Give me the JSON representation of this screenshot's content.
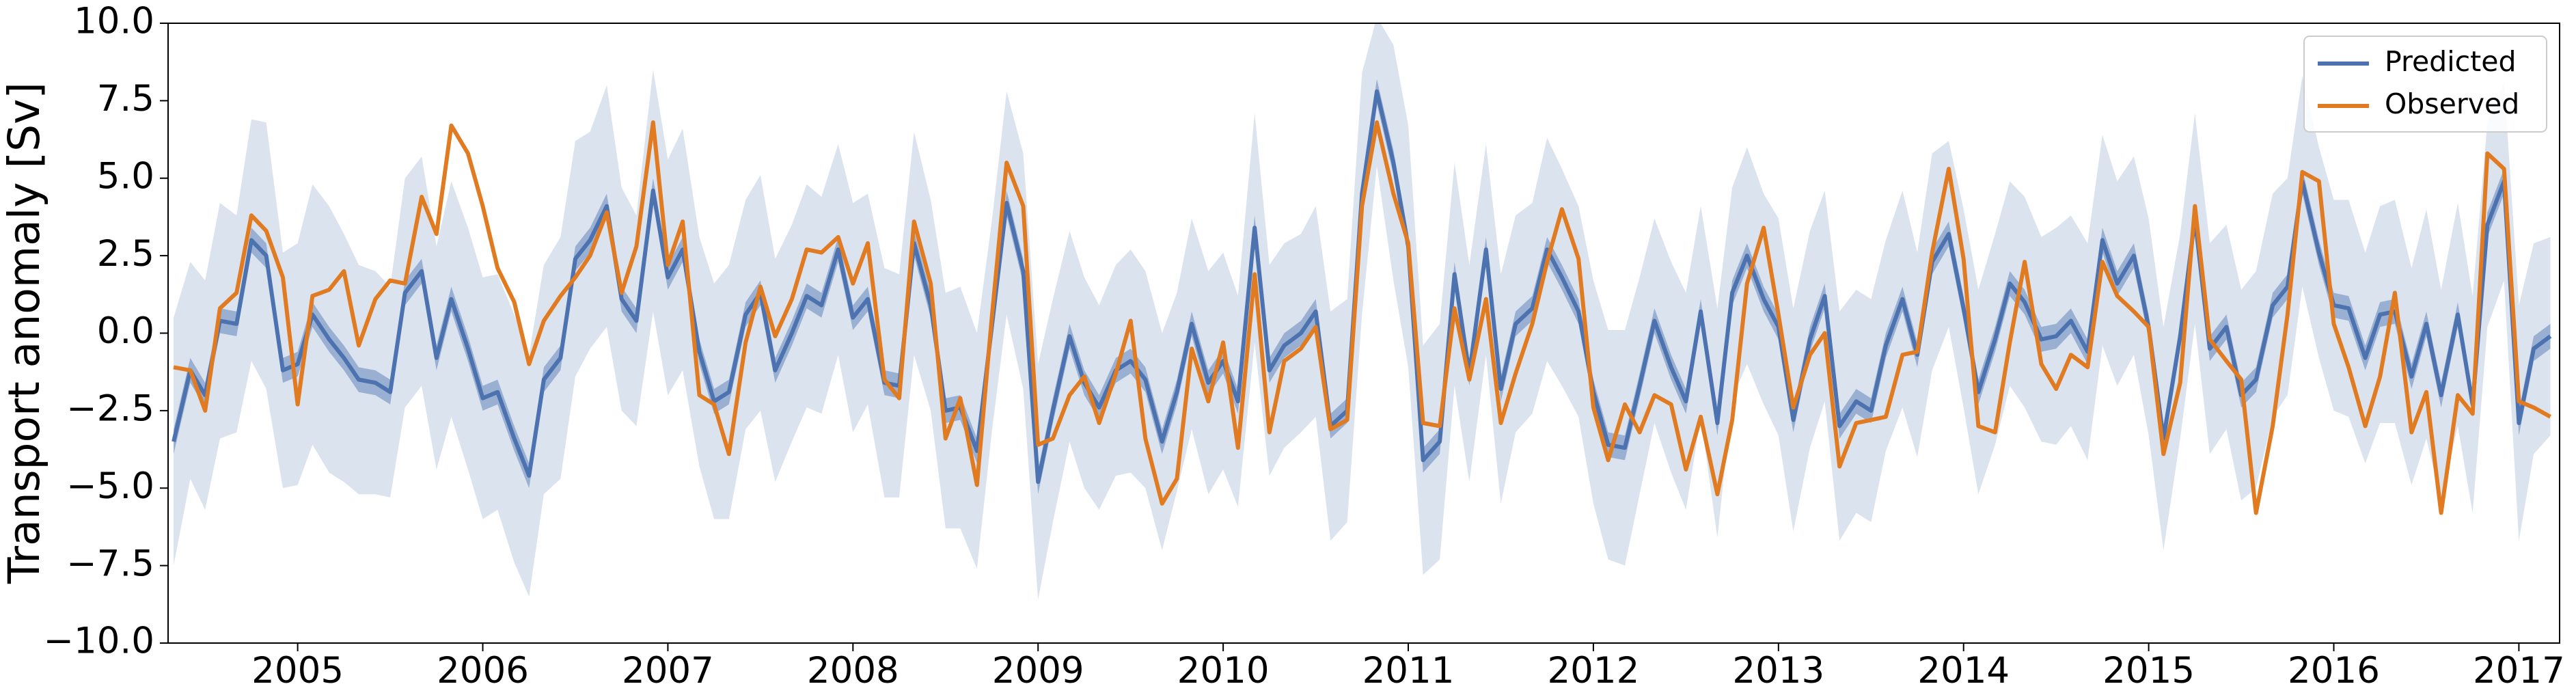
{
  "chart_data": {
    "type": "line",
    "ylabel": "Transport anomaly [Sv]",
    "xlim": [
      2004.3,
      2017.22
    ],
    "ylim": [
      -10,
      10
    ],
    "xticks": [
      2005,
      2006,
      2007,
      2008,
      2009,
      2010,
      2011,
      2012,
      2013,
      2014,
      2015,
      2016,
      2017
    ],
    "yticks": [
      {
        "value": -10,
        "label": "−10.0"
      },
      {
        "value": -7.5,
        "label": "−7.5"
      },
      {
        "value": -5,
        "label": "−5.0"
      },
      {
        "value": -2.5,
        "label": "−2.5"
      },
      {
        "value": 0,
        "label": "0.0"
      },
      {
        "value": 2.5,
        "label": "2.5"
      },
      {
        "value": 5,
        "label": "5.0"
      },
      {
        "value": 7.5,
        "label": "7.5"
      },
      {
        "value": 10,
        "label": "10.0"
      }
    ],
    "legend": "upper right",
    "x": [
      2004.33,
      2004.42,
      2004.5,
      2004.58,
      2004.67,
      2004.75,
      2004.83,
      2004.92,
      2005,
      2005.08,
      2005.17,
      2005.25,
      2005.33,
      2005.42,
      2005.5,
      2005.58,
      2005.67,
      2005.75,
      2005.83,
      2005.92,
      2006,
      2006.08,
      2006.17,
      2006.25,
      2006.33,
      2006.42,
      2006.5,
      2006.58,
      2006.67,
      2006.75,
      2006.83,
      2006.92,
      2007,
      2007.08,
      2007.17,
      2007.25,
      2007.33,
      2007.42,
      2007.5,
      2007.58,
      2007.67,
      2007.75,
      2007.83,
      2007.92,
      2008,
      2008.08,
      2008.17,
      2008.25,
      2008.33,
      2008.42,
      2008.5,
      2008.58,
      2008.67,
      2008.75,
      2008.83,
      2008.92,
      2009,
      2009.08,
      2009.17,
      2009.25,
      2009.33,
      2009.42,
      2009.5,
      2009.58,
      2009.67,
      2009.75,
      2009.83,
      2009.92,
      2010,
      2010.08,
      2010.17,
      2010.25,
      2010.33,
      2010.42,
      2010.5,
      2010.58,
      2010.67,
      2010.75,
      2010.83,
      2010.92,
      2011,
      2011.08,
      2011.17,
      2011.25,
      2011.33,
      2011.42,
      2011.5,
      2011.58,
      2011.67,
      2011.75,
      2011.83,
      2011.92,
      2012,
      2012.08,
      2012.17,
      2012.25,
      2012.33,
      2012.42,
      2012.5,
      2012.58,
      2012.67,
      2012.75,
      2012.83,
      2012.92,
      2013,
      2013.08,
      2013.17,
      2013.25,
      2013.33,
      2013.42,
      2013.5,
      2013.58,
      2013.67,
      2013.75,
      2013.83,
      2013.92,
      2014,
      2014.08,
      2014.17,
      2014.25,
      2014.33,
      2014.42,
      2014.5,
      2014.58,
      2014.67,
      2014.75,
      2014.83,
      2014.92,
      2015,
      2015.08,
      2015.17,
      2015.25,
      2015.33,
      2015.42,
      2015.5,
      2015.58,
      2015.67,
      2015.75,
      2015.83,
      2015.92,
      2016,
      2016.08,
      2016.17,
      2016.25,
      2016.33,
      2016.42,
      2016.5,
      2016.58,
      2016.67,
      2016.75,
      2016.83,
      2016.92,
      2017,
      2017.08,
      2017.17
    ],
    "series": [
      {
        "name": "Predicted",
        "color": "#4c72b0",
        "values": [
          -3.5,
          -1.2,
          -2.0,
          0.4,
          0.3,
          3.0,
          2.5,
          -1.2,
          -1.0,
          0.6,
          -0.2,
          -0.8,
          -1.5,
          -1.6,
          -1.9,
          1.3,
          2.0,
          -0.8,
          1.1,
          -0.5,
          -2.1,
          -1.9,
          -3.4,
          -4.6,
          -1.5,
          -0.8,
          2.4,
          3.0,
          4.1,
          1.1,
          0.4,
          4.6,
          1.8,
          2.7,
          -0.6,
          -2.2,
          -1.9,
          0.6,
          1.3,
          -1.2,
          0.0,
          1.2,
          0.9,
          2.7,
          0.5,
          1.1,
          -1.6,
          -1.7,
          2.9,
          0.9,
          -2.5,
          -2.4,
          -3.8,
          0.2,
          4.2,
          2.0,
          -4.8,
          -2.5,
          -0.1,
          -1.6,
          -2.4,
          -1.2,
          -0.9,
          -1.5,
          -3.5,
          -1.9,
          0.3,
          -1.6,
          -0.9,
          -2.2,
          3.4,
          -1.2,
          -0.4,
          0.0,
          0.7,
          -3.0,
          -2.5,
          4.5,
          7.8,
          5.5,
          2.8,
          -4.1,
          -3.5,
          1.9,
          -1.3,
          2.7,
          -1.8,
          0.3,
          0.8,
          2.7,
          1.8,
          0.7,
          -1.9,
          -3.6,
          -3.7,
          -1.7,
          0.4,
          -1.1,
          -2.2,
          0.7,
          -2.9,
          1.3,
          2.5,
          1.1,
          0.2,
          -2.8,
          -0.2,
          1.2,
          -3.0,
          -2.2,
          -2.5,
          -0.4,
          1.1,
          -0.7,
          2.3,
          3.2,
          0.8,
          -1.9,
          -0.2,
          1.6,
          1.0,
          -0.2,
          -0.1,
          0.4,
          -0.6,
          3.0,
          1.6,
          2.5,
          0.2,
          -3.4,
          -0.1,
          3.7,
          -0.5,
          0.2,
          -2.0,
          -1.5,
          0.9,
          1.5,
          4.9,
          2.6,
          0.9,
          0.8,
          -0.8,
          0.6,
          0.7,
          -1.4,
          0.3,
          -2.0,
          0.6,
          -2.3,
          3.5,
          4.9,
          -2.9,
          -0.5,
          -0.1
        ],
        "error": [
          4.0,
          3.5,
          3.7,
          3.8,
          3.5,
          3.9,
          4.3,
          3.8,
          3.9,
          4.2,
          4.3,
          4.0,
          3.7,
          3.6,
          3.4,
          3.7,
          3.7,
          3.6,
          3.8,
          3.9,
          3.9,
          3.8,
          4.0,
          3.9,
          3.7,
          3.9,
          3.8,
          3.5,
          3.9,
          3.6,
          3.4,
          3.9,
          3.8,
          3.9,
          3.7,
          3.8,
          4.1,
          3.7,
          3.8,
          3.6,
          3.5,
          3.6,
          3.5,
          3.4,
          3.7,
          3.4,
          3.7,
          3.6,
          3.6,
          3.4,
          3.8,
          3.9,
          3.8,
          3.4,
          3.6,
          3.8,
          3.8,
          3.6,
          3.4,
          3.4,
          3.3,
          3.4,
          3.6,
          3.5,
          3.5,
          3.2,
          3.4,
          3.6,
          3.5,
          3.4,
          3.7,
          3.4,
          3.3,
          3.2,
          3.4,
          3.7,
          3.6,
          3.9,
          2.4,
          3.8,
          3.9,
          3.7,
          3.8,
          3.6,
          3.5,
          3.4,
          3.7,
          3.5,
          3.4,
          3.6,
          3.5,
          3.4,
          3.6,
          3.7,
          3.8,
          3.5,
          3.3,
          3.4,
          3.5,
          3.4,
          3.7,
          3.4,
          3.5,
          3.4,
          3.5,
          3.6,
          3.5,
          3.4,
          3.7,
          3.6,
          3.6,
          3.4,
          3.5,
          3.3,
          3.5,
          3.0,
          3.2,
          3.3,
          3.4,
          3.3,
          3.4,
          3.3,
          3.5,
          3.4,
          3.5,
          3.4,
          3.3,
          3.2,
          3.5,
          3.6,
          3.3,
          3.4,
          3.4,
          3.3,
          3.4,
          3.5,
          3.6,
          3.5,
          3.4,
          3.4,
          3.4,
          3.5,
          3.4,
          3.5,
          3.6,
          3.5,
          3.7,
          3.4,
          3.6,
          3.5,
          3.3,
          3.2,
          3.8,
          3.4,
          3.2
        ],
        "inner_error": 0.4
      },
      {
        "name": "Observed",
        "color": "#e07b22",
        "values": [
          -1.1,
          -1.2,
          -2.5,
          0.8,
          1.3,
          3.8,
          3.3,
          1.8,
          -2.3,
          1.2,
          1.4,
          2.0,
          -0.4,
          1.1,
          1.7,
          1.6,
          4.4,
          3.2,
          6.7,
          5.8,
          4.1,
          2.1,
          1.0,
          -1.0,
          0.4,
          1.2,
          1.8,
          2.5,
          3.9,
          1.3,
          2.8,
          6.8,
          2.2,
          3.6,
          -2.0,
          -2.3,
          -3.9,
          -0.3,
          1.5,
          -0.1,
          1.1,
          2.7,
          2.6,
          3.1,
          1.6,
          2.9,
          -1.5,
          -2.1,
          3.6,
          1.6,
          -3.4,
          -2.1,
          -4.9,
          0.5,
          5.5,
          4.1,
          -3.6,
          -3.4,
          -2.0,
          -1.4,
          -2.9,
          -1.3,
          0.4,
          -3.4,
          -5.5,
          -4.7,
          -0.5,
          -2.2,
          -0.3,
          -3.7,
          1.9,
          -3.2,
          -0.9,
          -0.5,
          0.2,
          -3.1,
          -2.8,
          4.1,
          6.8,
          4.5,
          2.9,
          -2.9,
          -3.0,
          0.8,
          -1.5,
          1.1,
          -2.9,
          -1.3,
          0.3,
          2.3,
          4.0,
          2.4,
          -2.4,
          -4.1,
          -2.3,
          -3.2,
          -2.0,
          -2.3,
          -4.4,
          -2.7,
          -5.2,
          -2.8,
          1.6,
          3.4,
          0.6,
          -2.4,
          -0.7,
          0.0,
          -4.3,
          -2.9,
          -2.8,
          -2.7,
          -0.7,
          -0.6,
          2.6,
          5.3,
          2.4,
          -3.0,
          -3.2,
          -0.3,
          2.3,
          -1.0,
          -1.8,
          -0.7,
          -1.1,
          2.3,
          1.2,
          0.7,
          0.2,
          -3.9,
          -1.6,
          4.1,
          -0.2,
          -0.9,
          -1.5,
          -5.8,
          -3.0,
          0.6,
          5.2,
          4.9,
          0.3,
          -1.1,
          -3.0,
          -1.4,
          1.3,
          -3.2,
          -1.9,
          -5.8,
          -2.0,
          -2.6,
          5.8,
          5.3,
          -2.2,
          -2.4,
          -2.7
        ]
      }
    ]
  }
}
